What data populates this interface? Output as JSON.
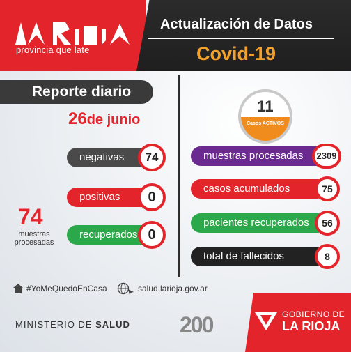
{
  "header": {
    "tagline": "provincia que late",
    "title": "Actualización de Datos",
    "subtitle": "Covid-19"
  },
  "report": {
    "heading": "Reporte diario",
    "day": "26",
    "month": "de junio"
  },
  "left_stats": [
    {
      "label": "negativas",
      "value": "74",
      "color": "#4a4a4a"
    },
    {
      "label": "positivas",
      "value": "0",
      "color": "#e4242b"
    },
    {
      "label": "recuperados",
      "value": "0",
      "color": "#2aa84a"
    }
  ],
  "muestras": {
    "value": "74",
    "label": "muestras procesadas"
  },
  "active": {
    "value": "11",
    "label": "Casos ACTIVOS"
  },
  "right_stats": [
    {
      "label": "muestras procesadas",
      "value": "2309",
      "color": "#6a2a8f"
    },
    {
      "label": "casos acumulados",
      "value": "75",
      "color": "#e4242b"
    },
    {
      "label": "pacientes recuperados",
      "value": "56",
      "color": "#2aa84a"
    },
    {
      "label": "total de fallecidos",
      "value": "8",
      "color": "#222222"
    }
  ],
  "footer": {
    "hashtag": "#YoMeQuedoEnCasa",
    "website": "salud.larioja.gov.ar",
    "ministry_prefix": "MINISTERIO DE ",
    "ministry_bold": "SALUD",
    "gov_line1": "GOBIERNO DE",
    "gov_line2": "LA RIOJA",
    "anniversary": "200"
  },
  "colors": {
    "brand_red": "#e4242b",
    "accent_orange": "#f2a12c",
    "dark": "#2a2a2a"
  }
}
